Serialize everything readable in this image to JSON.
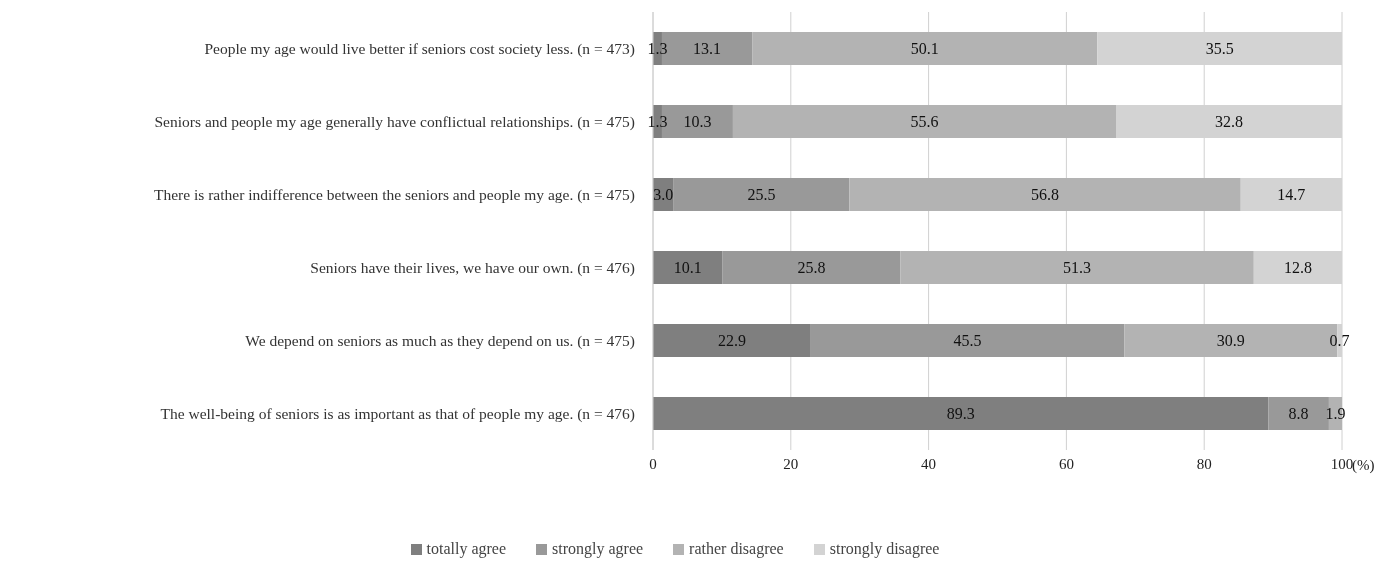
{
  "chart_data": {
    "type": "bar",
    "orientation": "horizontal",
    "stacked": true,
    "xlabel": "(%)",
    "categories": [
      "People my age would live better if seniors cost society less. (n = 473)",
      "Seniors and people my age generally have conflictual relationships. (n = 475)",
      "There is rather indifference between the seniors and people my age. (n = 475)",
      "Seniors have their lives, we have our own. (n = 476)",
      "We depend on seniors as much as they depend on us. (n = 475)",
      "The well-being of seniors is as important as that of people my age. (n = 476)"
    ],
    "series": [
      {
        "name": "totally agree",
        "color": "#7f7f7f",
        "values": [
          1.3,
          1.3,
          3.0,
          10.1,
          22.9,
          89.3
        ],
        "value_labels": [
          "1.3",
          "1.3",
          "3.0",
          "10.1",
          "22.9",
          "89.3"
        ]
      },
      {
        "name": "strongly agree",
        "color": "#999999",
        "values": [
          13.1,
          10.3,
          25.5,
          25.8,
          45.5,
          8.8
        ],
        "value_labels": [
          "13.1",
          "10.3",
          "25.5",
          "25.8",
          "45.5",
          "8.8"
        ]
      },
      {
        "name": "rather disagree",
        "color": "#b3b3b3",
        "values": [
          50.1,
          55.6,
          56.8,
          51.3,
          30.9,
          1.9
        ],
        "value_labels": [
          "50.1",
          "55.6",
          "56.8",
          "51.3",
          "30.9",
          "1.9"
        ]
      },
      {
        "name": "strongly disagree",
        "color": "#d3d3d3",
        "values": [
          35.5,
          32.8,
          14.7,
          12.8,
          0.7,
          null
        ],
        "value_labels": [
          "35.5",
          "32.8",
          "14.7",
          "12.8",
          "0.7",
          null
        ]
      }
    ],
    "xlim": [
      0,
      100
    ],
    "xticks": [
      0,
      20,
      40,
      60,
      80,
      100
    ],
    "grid": "x",
    "legend": "bottom"
  }
}
